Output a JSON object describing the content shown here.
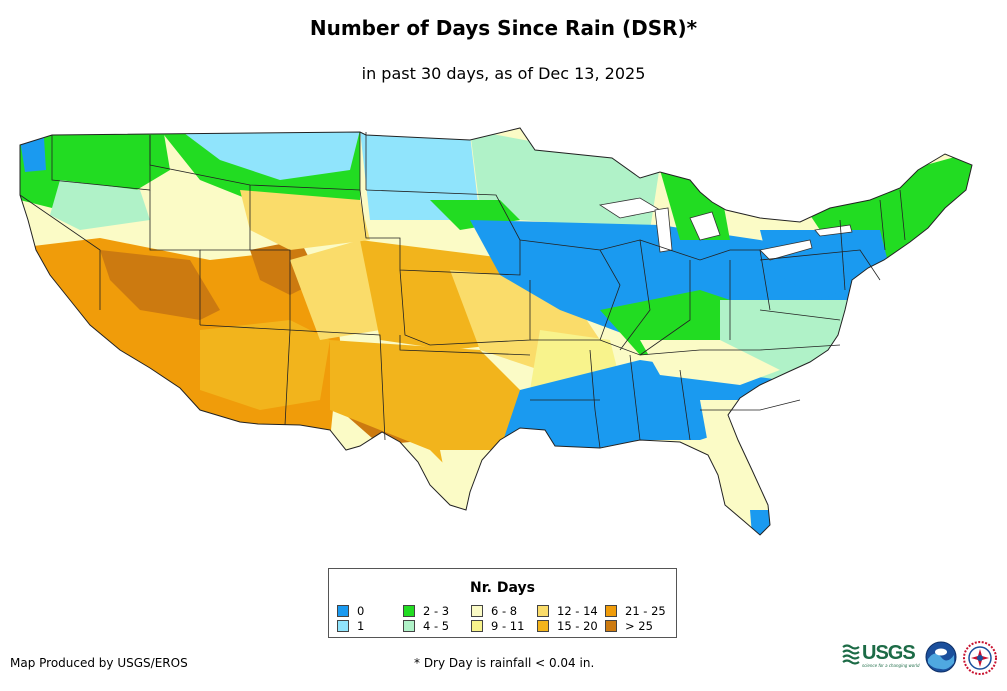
{
  "title": "Number of Days Since Rain (DSR)*",
  "subtitle": "in past 30 days, as of Dec 13, 2025",
  "legend": {
    "title": "Nr. Days",
    "items": [
      {
        "label": "0",
        "color": "#1a9af0"
      },
      {
        "label": "1",
        "color": "#90e4fc"
      },
      {
        "label": "2 - 3",
        "color": "#22dc22"
      },
      {
        "label": "4 - 5",
        "color": "#b0f2c8"
      },
      {
        "label": "6 - 8",
        "color": "#fbfbc6"
      },
      {
        "label": "9 - 11",
        "color": "#f8f38c"
      },
      {
        "label": "12 - 14",
        "color": "#fadc6a"
      },
      {
        "label": "15 - 20",
        "color": "#f2b41c"
      },
      {
        "label": "21 - 25",
        "color": "#f09c0a"
      },
      {
        "label": "> 25",
        "color": "#cc7a10"
      }
    ]
  },
  "footer": {
    "producer": "Map Produced by USGS/EROS",
    "note": "* Dry Day is rainfall < 0.04 in."
  },
  "logos": {
    "usgs": "USGS",
    "usgs_tagline": "science for a changing world",
    "noaa": "NOAA",
    "nws": "NWS"
  }
}
